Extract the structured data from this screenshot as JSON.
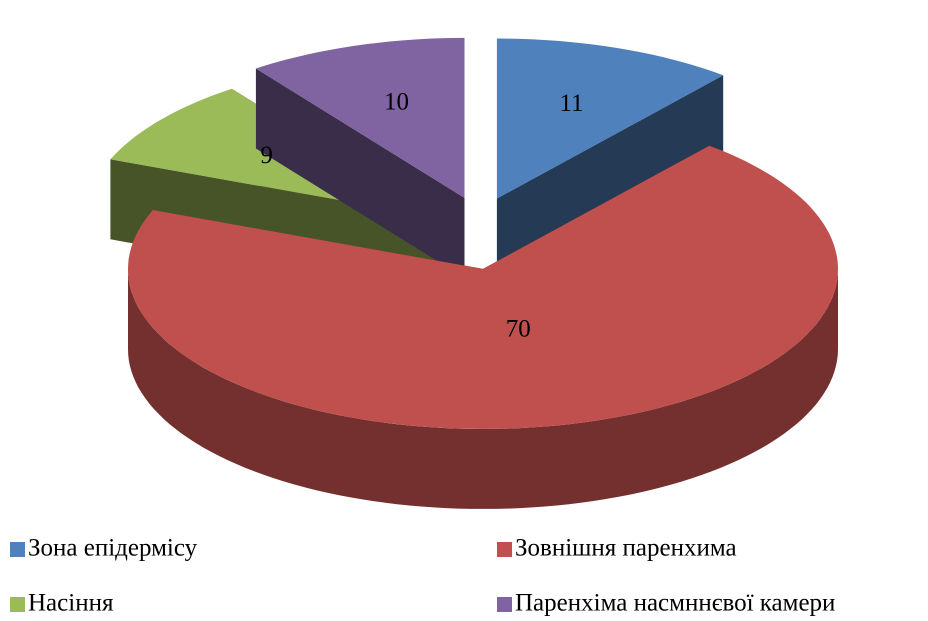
{
  "chart_data": {
    "type": "pie",
    "categories": [
      "Зона епідермісу",
      "Зовнішня паренхима",
      "Насіння",
      "Паренхіма насмннєвої камери"
    ],
    "values": [
      11,
      70,
      9,
      10
    ],
    "colors": [
      "#4f81bd",
      "#c0504d",
      "#9bbb59",
      "#8064a2"
    ]
  }
}
